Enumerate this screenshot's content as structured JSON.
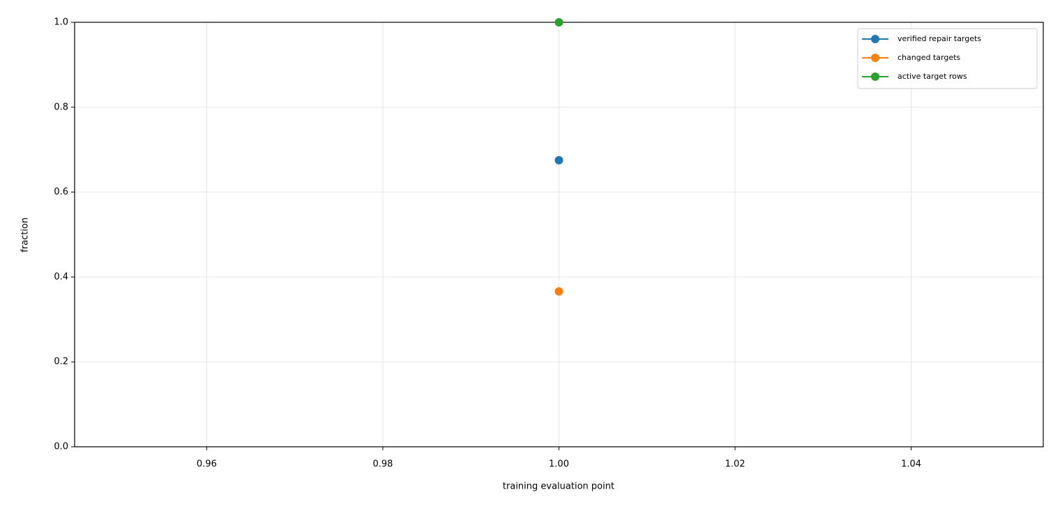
{
  "chart_data": {
    "type": "line",
    "x_label": "training evaluation point",
    "y_label": "fraction",
    "x": [
      1.0
    ],
    "series": [
      {
        "name": "verified repair targets",
        "color": "#1f77b4",
        "values": [
          0.675
        ]
      },
      {
        "name": "changed targets",
        "color": "#ff7f0e",
        "values": [
          0.366
        ]
      },
      {
        "name": "active target rows",
        "color": "#2ca02c",
        "values": [
          1.0
        ]
      }
    ],
    "xlim": [
      0.945,
      1.055
    ],
    "xticks": [
      0.96,
      0.98,
      {
        "value": 1.0,
        "label": "1.00"
      },
      1.02,
      1.04
    ],
    "ylim": [
      0,
      1
    ],
    "yticks": [
      {
        "value": 0,
        "label": "0.0"
      },
      0.2,
      0.4,
      0.6,
      0.8,
      {
        "value": 1,
        "label": "1.0"
      }
    ],
    "grid": true,
    "legend": "upper right"
  }
}
